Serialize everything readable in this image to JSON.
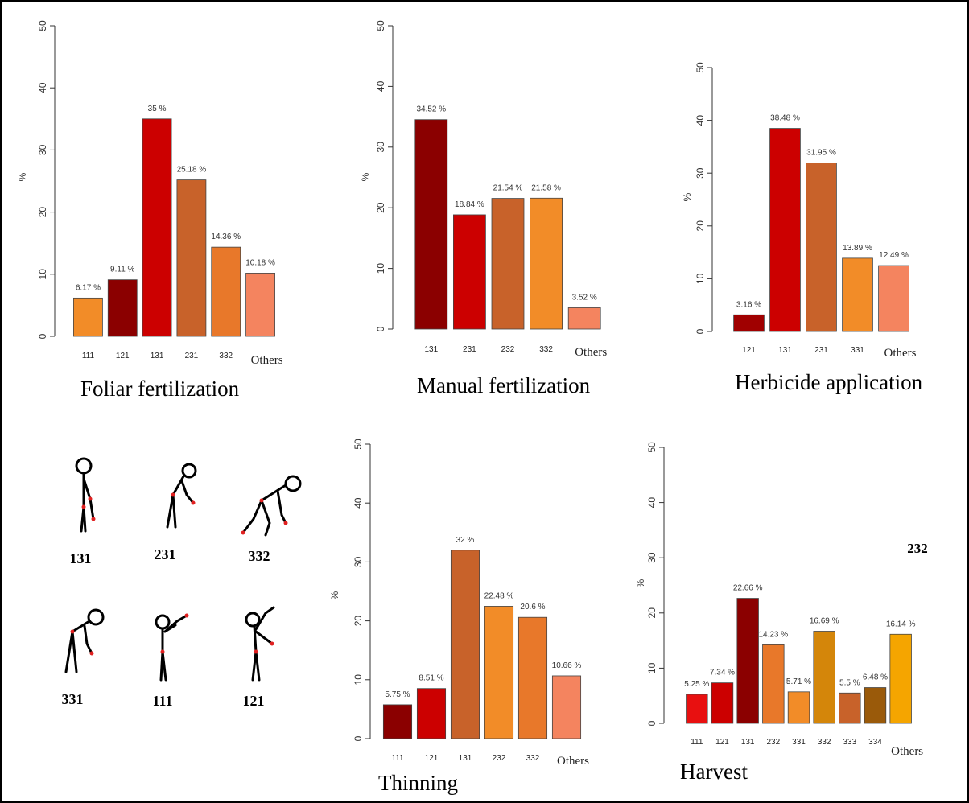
{
  "chart_data": [
    {
      "type": "bar",
      "title": "Foliar fertilization",
      "ylabel": "%",
      "categories": [
        "111",
        "121",
        "131",
        "231",
        "332",
        "Others"
      ],
      "values": [
        6.17,
        9.11,
        35,
        25.18,
        14.36,
        10.18
      ],
      "value_labels": [
        "6.17 %",
        "9.11 %",
        "35 %",
        "25.18 %",
        "14.36 %",
        "10.18 %"
      ],
      "colors": [
        "#f28c28",
        "#8b0000",
        "#cc0000",
        "#c8622a",
        "#e8782a",
        "#f4845f"
      ],
      "ylim": [
        0,
        50
      ],
      "yticks": [
        0,
        10,
        20,
        30,
        40,
        50
      ]
    },
    {
      "type": "bar",
      "title": "Manual fertilization",
      "ylabel": "%",
      "categories": [
        "131",
        "231",
        "232",
        "332",
        "Others"
      ],
      "values": [
        34.52,
        18.84,
        21.54,
        21.58,
        3.52
      ],
      "value_labels": [
        "34.52 %",
        "18.84 %",
        "21.54 %",
        "21.58 %",
        "3.52 %"
      ],
      "colors": [
        "#8b0000",
        "#cc0000",
        "#c8622a",
        "#f28c28",
        "#f4845f"
      ],
      "ylim": [
        0,
        50
      ],
      "yticks": [
        0,
        10,
        20,
        30,
        40,
        50
      ]
    },
    {
      "type": "bar",
      "title": "Herbicide application",
      "ylabel": "%",
      "categories": [
        "121",
        "131",
        "231",
        "331",
        "Others"
      ],
      "values": [
        3.16,
        38.48,
        31.95,
        13.89,
        12.49
      ],
      "value_labels": [
        "3.16 %",
        "38.48 %",
        "31.95 %",
        "13.89 %",
        "12.49 %"
      ],
      "colors": [
        "#a00000",
        "#cc0000",
        "#c8622a",
        "#f28c28",
        "#f4845f"
      ],
      "ylim": [
        0,
        50
      ],
      "yticks": [
        0,
        10,
        20,
        30,
        40,
        50
      ]
    },
    {
      "type": "bar",
      "title": "Thinning",
      "ylabel": "%",
      "categories": [
        "111",
        "121",
        "131",
        "232",
        "332",
        "Others"
      ],
      "values": [
        5.75,
        8.51,
        32,
        22.48,
        20.6,
        10.66
      ],
      "value_labels": [
        "5.75 %",
        "8.51 %",
        "32 %",
        "22.48 %",
        "20.6 %",
        "10.66 %"
      ],
      "colors": [
        "#8b0000",
        "#cc0000",
        "#c8622a",
        "#f28c28",
        "#e8782a",
        "#f4845f"
      ],
      "ylim": [
        0,
        50
      ],
      "yticks": [
        0,
        10,
        20,
        30,
        40,
        50
      ]
    },
    {
      "type": "bar",
      "title": "Harvest",
      "ylabel": "%",
      "annotation": "232",
      "categories": [
        "111",
        "121",
        "131",
        "232",
        "331",
        "332",
        "333",
        "334",
        "Others"
      ],
      "values": [
        5.25,
        7.34,
        22.66,
        14.23,
        5.71,
        16.69,
        5.5,
        6.48,
        16.14
      ],
      "value_labels": [
        "5.25 %",
        "7.34 %",
        "22.66 %",
        "14.23 %",
        "5.71 %",
        "16.69 %",
        "5.5 %",
        "6.48 %",
        "16.14 %"
      ],
      "colors": [
        "#e81010",
        "#cc0000",
        "#8b0000",
        "#e8782a",
        "#f28c28",
        "#d4860a",
        "#c8622a",
        "#9a5a0a",
        "#f5a500"
      ],
      "ylim": [
        0,
        50
      ],
      "yticks": [
        0,
        10,
        20,
        30,
        40,
        50
      ]
    }
  ],
  "postures": [
    "131",
    "231",
    "332",
    "331",
    "111",
    "121"
  ]
}
